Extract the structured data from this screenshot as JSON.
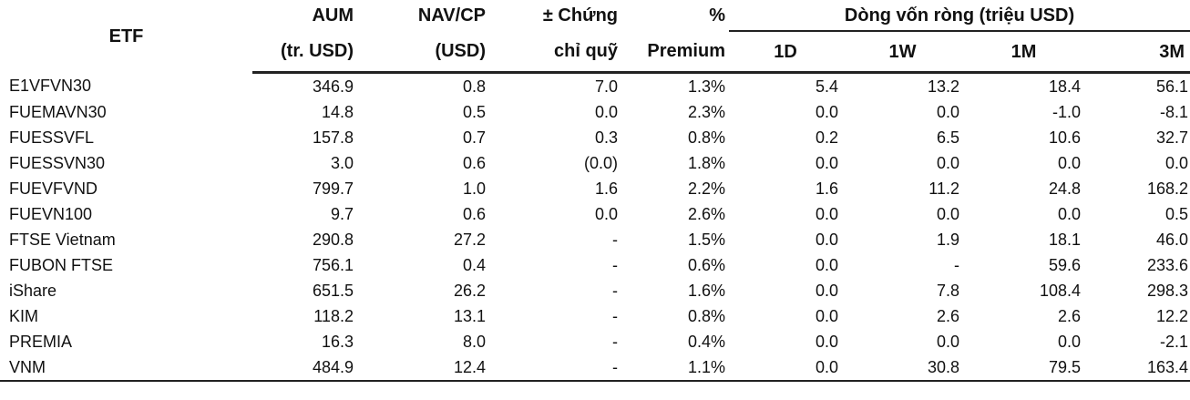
{
  "table": {
    "headers": {
      "etf": "ETF",
      "aum_line1": "AUM",
      "aum_line2": "(tr. USD)",
      "nav_line1": "NAV/CP",
      "nav_line2": "(USD)",
      "units_line1": "± Chứng",
      "units_line2": "chỉ quỹ",
      "premium_line1": "%",
      "premium_line2": "Premium",
      "flow_group": "Dòng vốn ròng (triệu USD)",
      "flow_1d": "1D",
      "flow_1w": "1W",
      "flow_1m": "1M",
      "flow_3m": "3M"
    },
    "rows": [
      {
        "etf": "E1VFVN30",
        "aum": "346.9",
        "nav": "0.8",
        "units": "7.0",
        "premium": "1.3%",
        "d1": "5.4",
        "w1": "13.2",
        "m1": "18.4",
        "m3": "56.1"
      },
      {
        "etf": "FUEMAVN30",
        "aum": "14.8",
        "nav": "0.5",
        "units": "0.0",
        "premium": "2.3%",
        "d1": "0.0",
        "w1": "0.0",
        "m1": "-1.0",
        "m3": "-8.1"
      },
      {
        "etf": "FUESSVFL",
        "aum": "157.8",
        "nav": "0.7",
        "units": "0.3",
        "premium": "0.8%",
        "d1": "0.2",
        "w1": "6.5",
        "m1": "10.6",
        "m3": "32.7"
      },
      {
        "etf": "FUESSVN30",
        "aum": "3.0",
        "nav": "0.6",
        "units": "(0.0)",
        "premium": "1.8%",
        "d1": "0.0",
        "w1": "0.0",
        "m1": "0.0",
        "m3": "0.0"
      },
      {
        "etf": "FUEVFVND",
        "aum": "799.7",
        "nav": "1.0",
        "units": "1.6",
        "premium": "2.2%",
        "d1": "1.6",
        "w1": "11.2",
        "m1": "24.8",
        "m3": "168.2"
      },
      {
        "etf": "FUEVN100",
        "aum": "9.7",
        "nav": "0.6",
        "units": "0.0",
        "premium": "2.6%",
        "d1": "0.0",
        "w1": "0.0",
        "m1": "0.0",
        "m3": "0.5"
      },
      {
        "etf": "FTSE Vietnam",
        "aum": "290.8",
        "nav": "27.2",
        "units": "-",
        "premium": "1.5%",
        "d1": "0.0",
        "w1": "1.9",
        "m1": "18.1",
        "m3": "46.0"
      },
      {
        "etf": "FUBON FTSE",
        "aum": "756.1",
        "nav": "0.4",
        "units": "-",
        "premium": "0.6%",
        "d1": "0.0",
        "w1": "-",
        "m1": "59.6",
        "m3": "233.6"
      },
      {
        "etf": "iShare",
        "aum": "651.5",
        "nav": "26.2",
        "units": "-",
        "premium": "1.6%",
        "d1": "0.0",
        "w1": "7.8",
        "m1": "108.4",
        "m3": "298.3"
      },
      {
        "etf": "KIM",
        "aum": "118.2",
        "nav": "13.1",
        "units": "-",
        "premium": "0.8%",
        "d1": "0.0",
        "w1": "2.6",
        "m1": "2.6",
        "m3": "12.2"
      },
      {
        "etf": "PREMIA",
        "aum": "16.3",
        "nav": "8.0",
        "units": "-",
        "premium": "0.4%",
        "d1": "0.0",
        "w1": "0.0",
        "m1": "0.0",
        "m3": "-2.1"
      },
      {
        "etf": "VNM",
        "aum": "484.9",
        "nav": "12.4",
        "units": "-",
        "premium": "1.1%",
        "d1": "0.0",
        "w1": "30.8",
        "m1": "79.5",
        "m3": "163.4"
      }
    ]
  }
}
